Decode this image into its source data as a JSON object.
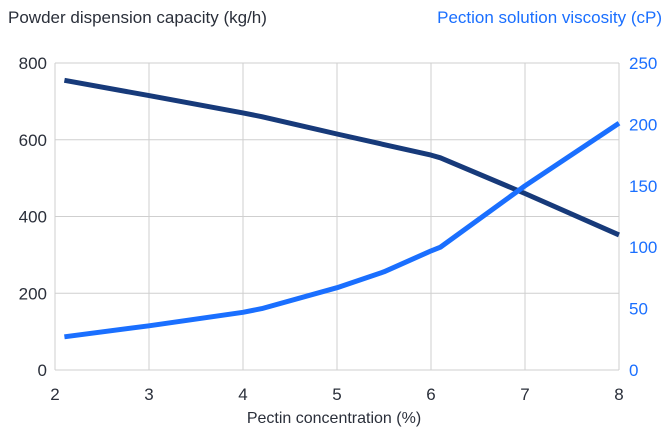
{
  "chart_data": {
    "type": "line",
    "left_axis_title": "Powder dispension capacity (kg/h)",
    "right_axis_title": "Pection solution viscosity (cP)",
    "xlabel": "Pectin concentration (%)",
    "xlim": [
      2,
      8
    ],
    "x_ticks": [
      "2",
      "3",
      "4",
      "5",
      "6",
      "7",
      "8"
    ],
    "ylim_left": [
      0,
      800
    ],
    "y_ticks_left": [
      "0",
      "200",
      "400",
      "600",
      "800"
    ],
    "ylim_right": [
      0,
      250
    ],
    "y_ticks_right": [
      "0",
      "50",
      "100",
      "150",
      "200",
      "250"
    ],
    "grid": true,
    "series": [
      {
        "axis": "left",
        "color": "#173a7a",
        "x": [
          2.1,
          3.0,
          4.0,
          4.2,
          5.0,
          6.0,
          6.1,
          7.0,
          8.0
        ],
        "values": [
          755,
          715,
          670,
          660,
          615,
          560,
          553,
          460,
          352
        ]
      },
      {
        "axis": "right",
        "color": "#1a6fff",
        "x": [
          2.1,
          3.0,
          4.0,
          4.2,
          5.0,
          5.5,
          6.0,
          6.1,
          7.0,
          8.0
        ],
        "values": [
          27,
          36,
          47,
          50,
          67,
          80,
          97,
          100,
          150,
          201
        ]
      }
    ]
  }
}
